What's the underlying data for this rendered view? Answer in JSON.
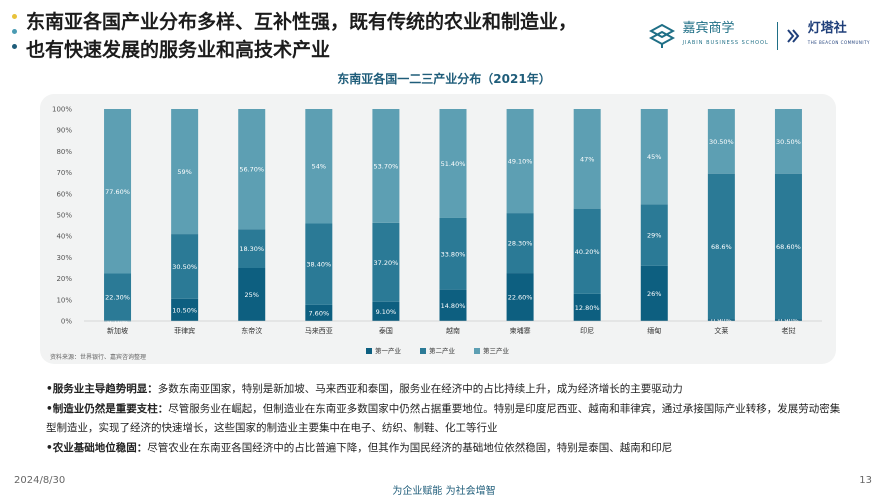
{
  "header": {
    "title_line1": "东南亚各国产业分布多样、互补性强，既有传统的农业和制造业，",
    "title_line2": "也有快速发展的服务业和高技术产业",
    "bullet_colors": [
      "#e8c23a",
      "#4a9bb3",
      "#1f5d7a"
    ],
    "logo1_name": "嘉宾商学",
    "logo1_sub": "JIABIN BUSINESS SCHOOL",
    "logo2_name": "灯塔社",
    "logo2_sub": "THE BEACON COMMUNITY"
  },
  "chart_data": {
    "type": "bar",
    "stacked": true,
    "title": "东南亚各国一二三产业分布（2021年）",
    "categories": [
      "新加坡",
      "菲律宾",
      "东帝汶",
      "马来西亚",
      "泰国",
      "越南",
      "柬埔寨",
      "印尼",
      "缅甸",
      "文莱",
      "老挝"
    ],
    "series": [
      {
        "name": "第一产业",
        "color": "#0d5f80",
        "values": [
          0.1,
          10.5,
          25,
          7.6,
          9.1,
          14.8,
          22.6,
          12.8,
          26,
          0.9,
          0.9
        ],
        "labels": [
          "0.10%",
          "10.50%",
          "25%",
          "7.60%",
          "9.10%",
          "14.80%",
          "22.60%",
          "12.80%",
          "26%",
          "0.90%",
          "0.90%"
        ]
      },
      {
        "name": "第二产业",
        "color": "#2b7a96",
        "values": [
          22.3,
          30.5,
          18.3,
          38.4,
          37.2,
          33.8,
          28.3,
          40.2,
          29,
          68.6,
          68.6
        ],
        "labels": [
          "22.30%",
          "30.50%",
          "18.30%",
          "38.40%",
          "37.20%",
          "33.80%",
          "28.30%",
          "40.20%",
          "29%",
          "68.6%",
          "68.60%"
        ]
      },
      {
        "name": "第三产业",
        "color": "#5d9fb3",
        "values": [
          77.6,
          59,
          56.7,
          54,
          53.7,
          51.4,
          49.1,
          47,
          45,
          30.5,
          30.5
        ],
        "labels": [
          "77.60%",
          "59%",
          "56.70%",
          "54%",
          "53.70%",
          "51.40%",
          "49.10%",
          "47%",
          "45%",
          "30.50%",
          "30.50%"
        ]
      }
    ],
    "y_ticks": [
      "0%",
      "10%",
      "20%",
      "30%",
      "40%",
      "50%",
      "60%",
      "70%",
      "80%",
      "90%",
      "100%"
    ],
    "ylim": [
      0,
      100
    ],
    "legend_position": "bottom",
    "grid": false
  },
  "source": "资料来源：世界银行、嘉宾咨询整理",
  "points": [
    {
      "head": "•服务业主导趋势明显：",
      "text": "多数东南亚国家，特别是新加坡、马来西亚和泰国，服务业在经济中的占比持续上升，成为经济增长的主要驱动力"
    },
    {
      "head": "•制造业仍然是重要支柱：",
      "text": "尽管服务业在崛起，但制造业在东南亚多数国家中仍然占据重要地位。特别是印度尼西亚、越南和菲律宾，通过承接国际产业转移，发展劳动密集型制造业，实现了经济的快速增长，这些国家的制造业主要集中在电子、纺织、制鞋、化工等行业"
    },
    {
      "head": "•农业基础地位稳固：",
      "text": "尽管农业在东南亚各国经济中的占比普遍下降，但其作为国民经济的基础地位依然稳固，特别是泰国、越南和印尼"
    }
  ],
  "footer": {
    "date": "2024/8/30",
    "page": "13",
    "slogan": "为企业赋能  为社会增智"
  }
}
